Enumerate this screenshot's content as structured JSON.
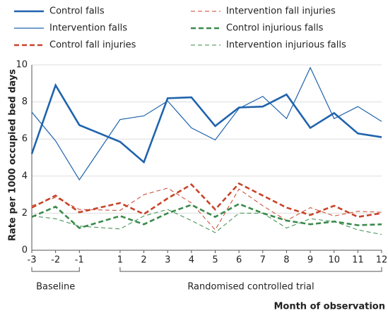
{
  "chart_data": {
    "type": "line",
    "y_label": "Rate per 1000 occupied bed days",
    "x_label": "Month of observation",
    "x_groups": [
      "Baseline",
      "Randomised controlled trial"
    ],
    "x": [
      -3,
      -2,
      -1,
      1,
      2,
      3,
      4,
      5,
      6,
      7,
      8,
      9,
      10,
      11,
      12
    ],
    "ylim": [
      0,
      10
    ],
    "yticks": [
      0,
      2,
      4,
      6,
      8,
      10
    ],
    "grid": true,
    "series": [
      {
        "name": "Control falls",
        "color": "#1f63ad",
        "width": 2.6,
        "dash": false,
        "values": [
          5.2,
          8.9,
          6.75,
          5.85,
          4.75,
          8.2,
          8.25,
          6.7,
          7.7,
          7.75,
          8.4,
          6.6,
          7.4,
          6.3,
          6.1
        ]
      },
      {
        "name": "Intervention falls",
        "color": "#1f63ad",
        "width": 1.2,
        "dash": false,
        "values": [
          7.45,
          5.9,
          3.8,
          7.05,
          7.25,
          8.05,
          6.6,
          5.95,
          7.65,
          8.3,
          7.1,
          9.85,
          7.1,
          7.75,
          6.95
        ]
      },
      {
        "name": "Control fall injuries",
        "color": "#c8432a",
        "width": 2.6,
        "dash": true,
        "values": [
          2.3,
          2.95,
          2.05,
          2.55,
          1.95,
          2.8,
          3.55,
          2.2,
          3.6,
          2.95,
          2.3,
          1.9,
          2.4,
          1.8,
          2.0
        ]
      },
      {
        "name": "Intervention fall injuries",
        "color": "#c8432a",
        "width": 1.0,
        "dash": true,
        "values": [
          2.4,
          2.85,
          2.2,
          2.15,
          3.0,
          3.35,
          2.55,
          1.1,
          3.3,
          2.4,
          1.6,
          2.3,
          1.85,
          2.1,
          2.05
        ]
      },
      {
        "name": "Control injurious falls",
        "color": "#3a8a4a",
        "width": 2.6,
        "dash": true,
        "values": [
          1.8,
          2.35,
          1.2,
          1.85,
          1.4,
          2.0,
          2.45,
          1.8,
          2.5,
          2.0,
          1.6,
          1.4,
          1.55,
          1.35,
          1.4
        ]
      },
      {
        "name": "Intervention injurious falls",
        "color": "#3a8a4a",
        "width": 1.0,
        "dash": true,
        "values": [
          1.85,
          1.7,
          1.3,
          1.15,
          1.85,
          2.2,
          1.6,
          0.95,
          2.0,
          2.0,
          1.2,
          1.7,
          1.55,
          1.1,
          0.85
        ]
      }
    ]
  }
}
